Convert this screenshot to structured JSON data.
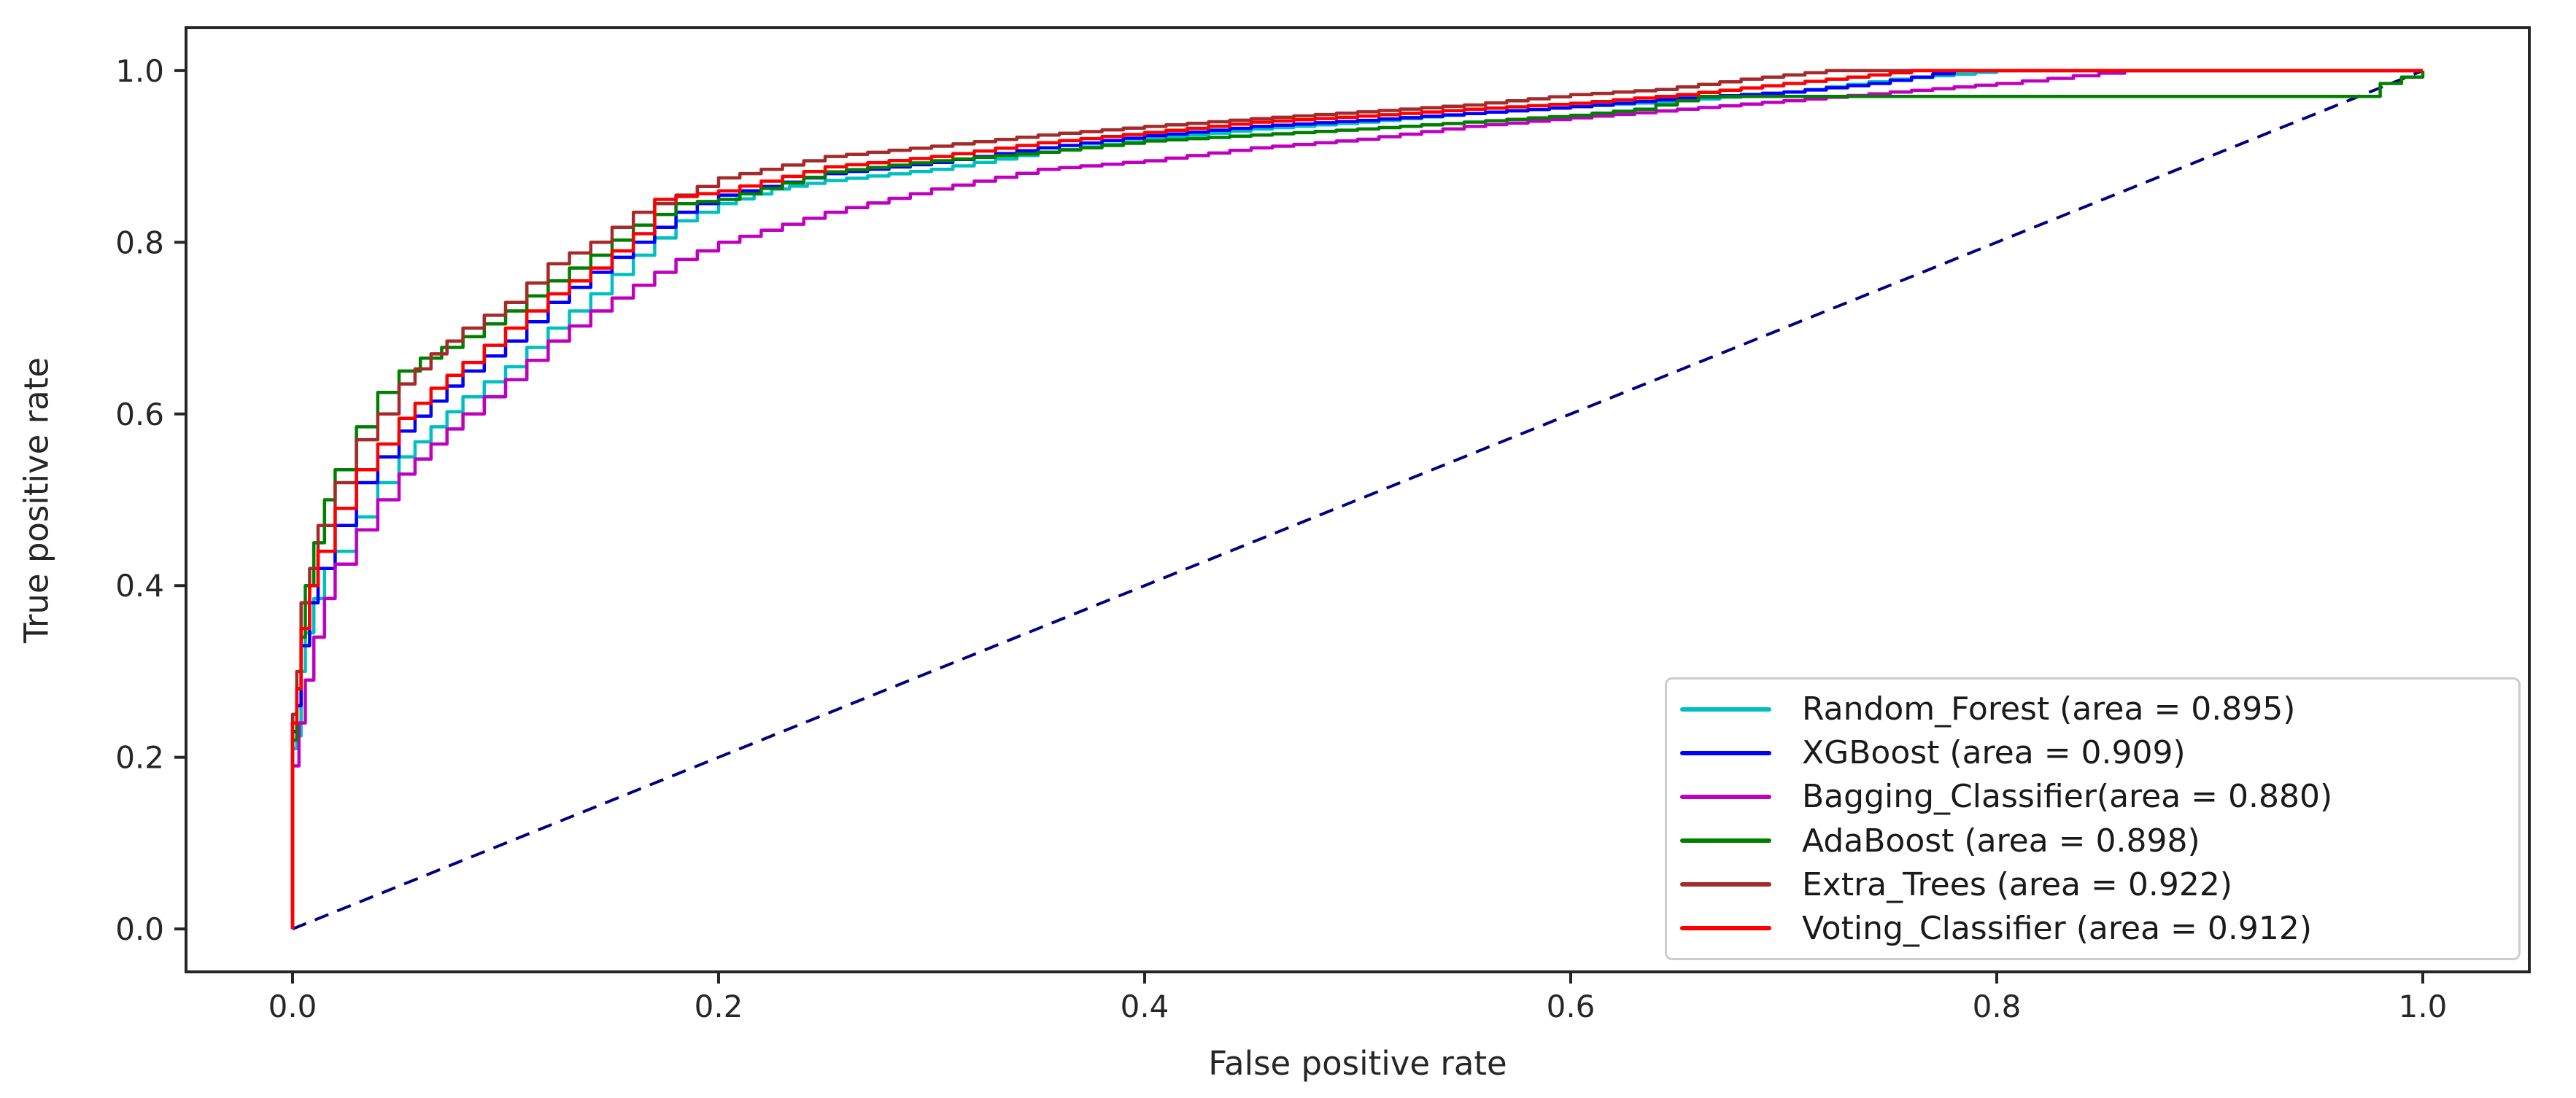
{
  "figure": {
    "background": "#ffffff",
    "text_color": "#262626",
    "spine_color": "#262626"
  },
  "chart_data": {
    "type": "line",
    "title": "",
    "xlabel": "False positive rate",
    "ylabel": "True positive rate",
    "xlim": [
      -0.05,
      1.05
    ],
    "ylim": [
      -0.05,
      1.05
    ],
    "grid": false,
    "xticks": {
      "values": [
        0.0,
        0.2,
        0.4,
        0.6,
        0.8,
        1.0
      ],
      "labels": [
        "0.0",
        "0.2",
        "0.4",
        "0.6",
        "0.8",
        "1.0"
      ]
    },
    "yticks": {
      "values": [
        0.0,
        0.2,
        0.4,
        0.6,
        0.8,
        1.0
      ],
      "labels": [
        "0.0",
        "0.2",
        "0.4",
        "0.6",
        "0.8",
        "1.0"
      ]
    },
    "legend": {
      "position": "lower right"
    },
    "reference_line": {
      "name": "chance-diagonal",
      "color": "#000080",
      "style": "dashed",
      "points": [
        [
          0,
          0
        ],
        [
          1,
          1
        ]
      ]
    },
    "series": [
      {
        "name": "Random_Forest",
        "legend_label": "Random_Forest (area = 0.895)",
        "auc": 0.895,
        "color": "#00bfbf",
        "style": "solid",
        "points": [
          [
            0,
            0
          ],
          [
            0,
            0.21
          ],
          [
            0.002,
            0.225
          ],
          [
            0.004,
            0.3
          ],
          [
            0.006,
            0.345
          ],
          [
            0.01,
            0.385
          ],
          [
            0.015,
            0.42
          ],
          [
            0.02,
            0.44
          ],
          [
            0.03,
            0.48
          ],
          [
            0.04,
            0.52
          ],
          [
            0.05,
            0.55
          ],
          [
            0.065,
            0.585
          ],
          [
            0.08,
            0.62
          ],
          [
            0.1,
            0.655
          ],
          [
            0.12,
            0.7
          ],
          [
            0.14,
            0.74
          ],
          [
            0.16,
            0.785
          ],
          [
            0.18,
            0.825
          ],
          [
            0.2,
            0.845
          ],
          [
            0.225,
            0.862
          ],
          [
            0.25,
            0.872
          ],
          [
            0.3,
            0.885
          ],
          [
            0.35,
            0.905
          ],
          [
            0.4,
            0.92
          ],
          [
            0.45,
            0.932
          ],
          [
            0.5,
            0.94
          ],
          [
            0.55,
            0.95
          ],
          [
            0.6,
            0.958
          ],
          [
            0.65,
            0.965
          ],
          [
            0.7,
            0.975
          ],
          [
            0.75,
            0.99
          ],
          [
            0.8,
            1.0
          ],
          [
            1.0,
            1.0
          ]
        ]
      },
      {
        "name": "XGBoost",
        "legend_label": "XGBoost (area = 0.909)",
        "auc": 0.909,
        "color": "#0000ff",
        "style": "solid",
        "points": [
          [
            0,
            0
          ],
          [
            0,
            0.23
          ],
          [
            0.002,
            0.26
          ],
          [
            0.004,
            0.33
          ],
          [
            0.008,
            0.38
          ],
          [
            0.012,
            0.42
          ],
          [
            0.02,
            0.47
          ],
          [
            0.03,
            0.52
          ],
          [
            0.04,
            0.55
          ],
          [
            0.05,
            0.58
          ],
          [
            0.065,
            0.615
          ],
          [
            0.08,
            0.65
          ],
          [
            0.1,
            0.685
          ],
          [
            0.12,
            0.73
          ],
          [
            0.14,
            0.765
          ],
          [
            0.16,
            0.8
          ],
          [
            0.18,
            0.835
          ],
          [
            0.2,
            0.855
          ],
          [
            0.25,
            0.88
          ],
          [
            0.3,
            0.893
          ],
          [
            0.35,
            0.91
          ],
          [
            0.4,
            0.924
          ],
          [
            0.45,
            0.935
          ],
          [
            0.5,
            0.942
          ],
          [
            0.55,
            0.95
          ],
          [
            0.6,
            0.958
          ],
          [
            0.65,
            0.968
          ],
          [
            0.7,
            0.975
          ],
          [
            0.74,
            0.985
          ],
          [
            0.78,
            1.0
          ],
          [
            1.0,
            1.0
          ]
        ]
      },
      {
        "name": "Bagging_Classifier",
        "legend_label": "Bagging_Classifier(area = 0.880)",
        "auc": 0.88,
        "color": "#bf00bf",
        "style": "solid",
        "points": [
          [
            0,
            0
          ],
          [
            0,
            0.19
          ],
          [
            0.003,
            0.24
          ],
          [
            0.006,
            0.29
          ],
          [
            0.01,
            0.34
          ],
          [
            0.015,
            0.385
          ],
          [
            0.02,
            0.425
          ],
          [
            0.03,
            0.465
          ],
          [
            0.04,
            0.5
          ],
          [
            0.05,
            0.53
          ],
          [
            0.065,
            0.565
          ],
          [
            0.08,
            0.6
          ],
          [
            0.1,
            0.64
          ],
          [
            0.12,
            0.685
          ],
          [
            0.14,
            0.72
          ],
          [
            0.16,
            0.75
          ],
          [
            0.18,
            0.78
          ],
          [
            0.2,
            0.8
          ],
          [
            0.25,
            0.835
          ],
          [
            0.3,
            0.862
          ],
          [
            0.35,
            0.885
          ],
          [
            0.4,
            0.895
          ],
          [
            0.45,
            0.91
          ],
          [
            0.5,
            0.92
          ],
          [
            0.55,
            0.935
          ],
          [
            0.6,
            0.945
          ],
          [
            0.65,
            0.955
          ],
          [
            0.7,
            0.965
          ],
          [
            0.75,
            0.975
          ],
          [
            0.8,
            0.985
          ],
          [
            0.86,
            1.0
          ],
          [
            1.0,
            1.0
          ]
        ]
      },
      {
        "name": "AdaBoost",
        "legend_label": "AdaBoost (area = 0.898)",
        "auc": 0.898,
        "color": "#008000",
        "style": "solid",
        "points": [
          [
            0,
            0
          ],
          [
            0,
            0.22
          ],
          [
            0.002,
            0.28
          ],
          [
            0.004,
            0.34
          ],
          [
            0.006,
            0.4
          ],
          [
            0.01,
            0.45
          ],
          [
            0.015,
            0.5
          ],
          [
            0.02,
            0.535
          ],
          [
            0.03,
            0.585
          ],
          [
            0.04,
            0.625
          ],
          [
            0.05,
            0.65
          ],
          [
            0.06,
            0.665
          ],
          [
            0.08,
            0.69
          ],
          [
            0.1,
            0.72
          ],
          [
            0.12,
            0.755
          ],
          [
            0.14,
            0.785
          ],
          [
            0.16,
            0.82
          ],
          [
            0.18,
            0.845
          ],
          [
            0.2,
            0.85
          ],
          [
            0.25,
            0.882
          ],
          [
            0.3,
            0.895
          ],
          [
            0.35,
            0.905
          ],
          [
            0.4,
            0.918
          ],
          [
            0.45,
            0.925
          ],
          [
            0.5,
            0.932
          ],
          [
            0.55,
            0.94
          ],
          [
            0.6,
            0.948
          ],
          [
            0.63,
            0.955
          ],
          [
            0.66,
            0.97
          ],
          [
            0.97,
            0.97
          ],
          [
            0.98,
            0.985
          ],
          [
            1.0,
            1.0
          ]
        ]
      },
      {
        "name": "Extra_Trees",
        "legend_label": "Extra_Trees (area = 0.922)",
        "auc": 0.922,
        "color": "#a52a2a",
        "style": "solid",
        "points": [
          [
            0,
            0
          ],
          [
            0,
            0.25
          ],
          [
            0.002,
            0.3
          ],
          [
            0.004,
            0.38
          ],
          [
            0.008,
            0.42
          ],
          [
            0.012,
            0.47
          ],
          [
            0.02,
            0.52
          ],
          [
            0.03,
            0.57
          ],
          [
            0.04,
            0.6
          ],
          [
            0.05,
            0.635
          ],
          [
            0.065,
            0.67
          ],
          [
            0.08,
            0.7
          ],
          [
            0.1,
            0.73
          ],
          [
            0.12,
            0.775
          ],
          [
            0.14,
            0.8
          ],
          [
            0.16,
            0.835
          ],
          [
            0.18,
            0.855
          ],
          [
            0.2,
            0.875
          ],
          [
            0.25,
            0.9
          ],
          [
            0.3,
            0.912
          ],
          [
            0.35,
            0.925
          ],
          [
            0.4,
            0.935
          ],
          [
            0.45,
            0.944
          ],
          [
            0.5,
            0.952
          ],
          [
            0.55,
            0.96
          ],
          [
            0.6,
            0.972
          ],
          [
            0.64,
            0.978
          ],
          [
            0.68,
            0.99
          ],
          [
            0.72,
            1.0
          ],
          [
            1.0,
            1.0
          ]
        ]
      },
      {
        "name": "Voting_Classifier",
        "legend_label": "Voting_Classifier (area = 0.912)",
        "auc": 0.912,
        "color": "#ff0000",
        "style": "solid",
        "points": [
          [
            0,
            0
          ],
          [
            0,
            0.24
          ],
          [
            0.002,
            0.28
          ],
          [
            0.004,
            0.35
          ],
          [
            0.008,
            0.4
          ],
          [
            0.012,
            0.44
          ],
          [
            0.02,
            0.49
          ],
          [
            0.03,
            0.535
          ],
          [
            0.04,
            0.565
          ],
          [
            0.05,
            0.595
          ],
          [
            0.065,
            0.63
          ],
          [
            0.08,
            0.66
          ],
          [
            0.1,
            0.7
          ],
          [
            0.12,
            0.74
          ],
          [
            0.14,
            0.77
          ],
          [
            0.16,
            0.81
          ],
          [
            0.17,
            0.85
          ],
          [
            0.2,
            0.86
          ],
          [
            0.25,
            0.888
          ],
          [
            0.3,
            0.9
          ],
          [
            0.35,
            0.916
          ],
          [
            0.4,
            0.928
          ],
          [
            0.45,
            0.94
          ],
          [
            0.5,
            0.947
          ],
          [
            0.55,
            0.955
          ],
          [
            0.6,
            0.962
          ],
          [
            0.65,
            0.972
          ],
          [
            0.7,
            0.985
          ],
          [
            0.76,
            1.0
          ],
          [
            1.0,
            1.0
          ]
        ]
      }
    ]
  }
}
